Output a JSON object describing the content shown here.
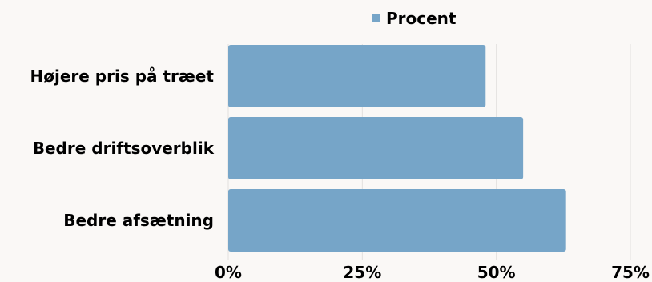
{
  "chart_data": {
    "type": "bar",
    "orientation": "horizontal",
    "categories": [
      "Højere pris på træet",
      "Bedre driftsoverblik",
      "Bedre afsætning"
    ],
    "series": [
      {
        "name": "Procent",
        "values": [
          48,
          55,
          63
        ],
        "color": "#76a5c8"
      }
    ],
    "xlim": [
      0,
      75
    ],
    "xticks": [
      0,
      25,
      50,
      75
    ],
    "tick_labels": [
      "0%",
      "25%",
      "50%",
      "75%"
    ],
    "grid": true,
    "legend": "top-center"
  }
}
